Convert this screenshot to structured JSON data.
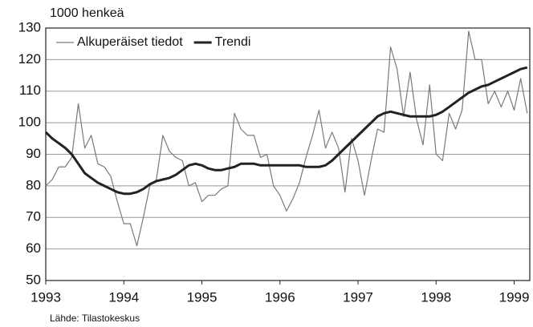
{
  "chart_data": {
    "type": "line",
    "ylabel": "1000 henkeä",
    "source": "Lähde: Tilastokeskus",
    "x": [
      1993,
      1993.083,
      1993.167,
      1993.25,
      1993.333,
      1993.417,
      1993.5,
      1993.583,
      1993.667,
      1993.75,
      1993.833,
      1993.917,
      1994,
      1994.083,
      1994.167,
      1994.25,
      1994.333,
      1994.417,
      1994.5,
      1994.583,
      1994.667,
      1994.75,
      1994.833,
      1994.917,
      1995,
      1995.083,
      1995.167,
      1995.25,
      1995.333,
      1995.417,
      1995.5,
      1995.583,
      1995.667,
      1995.75,
      1995.833,
      1995.917,
      1996,
      1996.083,
      1996.167,
      1996.25,
      1996.333,
      1996.417,
      1996.5,
      1996.583,
      1996.667,
      1996.75,
      1996.833,
      1996.917,
      1997,
      1997.083,
      1997.167,
      1997.25,
      1997.333,
      1997.417,
      1997.5,
      1997.583,
      1997.667,
      1997.75,
      1997.833,
      1997.917,
      1998,
      1998.083,
      1998.167,
      1998.25,
      1998.333,
      1998.417,
      1998.5,
      1998.583,
      1998.667,
      1998.75,
      1998.833,
      1998.917,
      1999,
      1999.083,
      1999.167
    ],
    "series": [
      {
        "name": "Alkuperäiset tiedot",
        "color": "#7a7a7a",
        "width": 1.2,
        "values": [
          80,
          82,
          86,
          86,
          89,
          106,
          92,
          96,
          87,
          86,
          83,
          75,
          68,
          68,
          61,
          70,
          80,
          82,
          96,
          91,
          89,
          88,
          80,
          81,
          75,
          77,
          77,
          79,
          80,
          103,
          98,
          96,
          96,
          89,
          90,
          80,
          77,
          72,
          76,
          81,
          89,
          96,
          104,
          92,
          97,
          92,
          78,
          95,
          88,
          77,
          88,
          98,
          97,
          124,
          117,
          102,
          116,
          101,
          93,
          112,
          90,
          88,
          103,
          98,
          104,
          129,
          120,
          120,
          106,
          110,
          105,
          110,
          104,
          114,
          103
        ]
      },
      {
        "name": "Trendi",
        "color": "#222222",
        "width": 3,
        "values": [
          97,
          95,
          93.5,
          92,
          90,
          87,
          84,
          82.5,
          81,
          80,
          79,
          78,
          77.5,
          77.5,
          78,
          79,
          80.5,
          81.5,
          82,
          82.5,
          83.5,
          85,
          86.5,
          87,
          86.5,
          85.5,
          85,
          85,
          85.5,
          86,
          87,
          87,
          87,
          86.5,
          86.5,
          86.5,
          86.5,
          86.5,
          86.5,
          86.5,
          86,
          86,
          86,
          86.5,
          88,
          90,
          92,
          94,
          96,
          98,
          100,
          102,
          103,
          103.5,
          103,
          102.5,
          102,
          102,
          102,
          102,
          102.5,
          103.5,
          105,
          106.5,
          108,
          109.5,
          110.5,
          111.5,
          112,
          113,
          114,
          115,
          116,
          117,
          117.5
        ]
      }
    ],
    "xlim": [
      1993,
      1999.2
    ],
    "xticks": [
      1993,
      1994,
      1995,
      1996,
      1997,
      1998,
      1999
    ],
    "ylim": [
      50,
      130
    ],
    "yticks": [
      50,
      60,
      70,
      80,
      90,
      100,
      110,
      120,
      130
    ],
    "grid": true,
    "legend": "top-left"
  }
}
